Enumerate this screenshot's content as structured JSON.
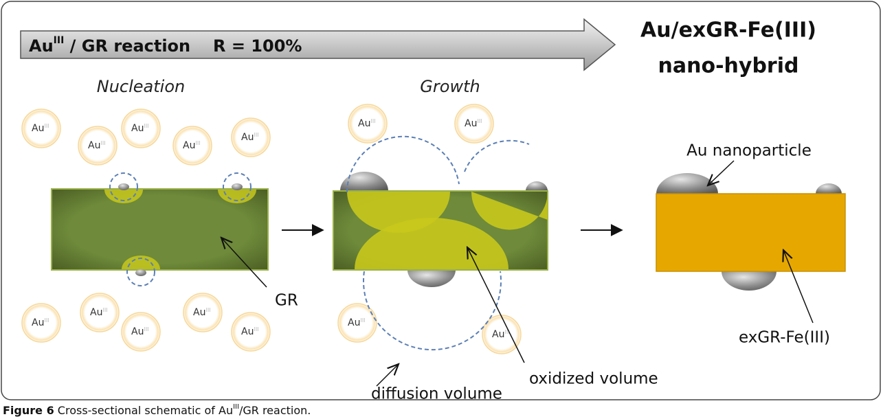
{
  "banner": {
    "symbol": "Au",
    "charge": "III",
    "reaction": " / GR reaction",
    "yield": "R = 100%"
  },
  "product": {
    "line1": "Au/exGR-Fe(III)",
    "line2": "nano-hybrid"
  },
  "stages": {
    "nucleation": "Nucleation",
    "growth": "Growth"
  },
  "ion": {
    "label": "Au",
    "charge": "III"
  },
  "labels": {
    "nanoparticle": "Au nanoparticle",
    "gr": "GR",
    "exgr": "exGR-Fe(III)",
    "oxidized": "oxidized volume",
    "diffusion": "diffusion volume"
  },
  "caption": {
    "number": "Figure 6",
    "text": " Cross-sectional schematic of Au",
    "charge": "III",
    "rest": "/GR reaction."
  }
}
